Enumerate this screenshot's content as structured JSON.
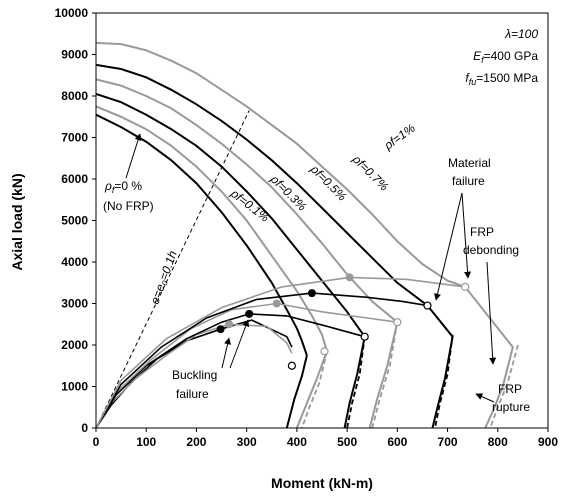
{
  "chart_data": {
    "type": "line",
    "xlabel": "Moment (kN-m)",
    "ylabel": "Axial load (kN)",
    "xlim": [
      0,
      900
    ],
    "ylim": [
      0,
      10000
    ],
    "xticks": [
      "0",
      "100",
      "200",
      "300",
      "400",
      "500",
      "600",
      "700",
      "800",
      "900"
    ],
    "yticks": [
      "0",
      "1000",
      "2000",
      "3000",
      "4000",
      "5000",
      "6000",
      "7000",
      "8000",
      "9000",
      "10000"
    ],
    "grid": false,
    "legend": "none",
    "params": {
      "lambda": "λ=100",
      "ef_label": "E",
      "ef_sub": "f",
      "ef_value": "=400 GPa",
      "ffu_label": "f",
      "ffu_sub": "fu",
      "ffu_value": "=1500 MPa"
    },
    "interaction_curves": [
      {
        "label": "ρf=0 %",
        "color": "#000000",
        "points": [
          [
            0,
            7550
          ],
          [
            50,
            7250
          ],
          [
            100,
            6900
          ],
          [
            150,
            6450
          ],
          [
            200,
            5900
          ],
          [
            250,
            5200
          ],
          [
            300,
            4400
          ],
          [
            350,
            3500
          ],
          [
            380,
            2850
          ],
          [
            400,
            2400
          ],
          [
            410,
            2100
          ],
          [
            420,
            1750
          ]
        ]
      },
      {
        "label": "ρf=0.1%",
        "color": "#999999",
        "points": [
          [
            0,
            7750
          ],
          [
            50,
            7500
          ],
          [
            100,
            7200
          ],
          [
            150,
            6800
          ],
          [
            200,
            6300
          ],
          [
            250,
            5700
          ],
          [
            300,
            5000
          ],
          [
            350,
            4150
          ],
          [
            400,
            3300
          ],
          [
            430,
            2700
          ],
          [
            450,
            2250
          ],
          [
            460,
            1850
          ]
        ]
      },
      {
        "label": "ρf=0.3%",
        "color": "#000000",
        "points": [
          [
            0,
            8050
          ],
          [
            50,
            7850
          ],
          [
            100,
            7550
          ],
          [
            150,
            7200
          ],
          [
            200,
            6800
          ],
          [
            250,
            6300
          ],
          [
            300,
            5700
          ],
          [
            350,
            5050
          ],
          [
            400,
            4300
          ],
          [
            450,
            3550
          ],
          [
            500,
            2800
          ],
          [
            535,
            2200
          ]
        ]
      },
      {
        "label": "ρf=0.5%",
        "color": "#999999",
        "points": [
          [
            0,
            8400
          ],
          [
            50,
            8250
          ],
          [
            100,
            8000
          ],
          [
            150,
            7700
          ],
          [
            200,
            7300
          ],
          [
            250,
            6850
          ],
          [
            300,
            6350
          ],
          [
            350,
            5800
          ],
          [
            400,
            5150
          ],
          [
            450,
            4450
          ],
          [
            500,
            3700
          ],
          [
            550,
            3050
          ],
          [
            600,
            2550
          ]
        ]
      },
      {
        "label": "ρf=0.7%",
        "color": "#000000",
        "points": [
          [
            0,
            8750
          ],
          [
            50,
            8650
          ],
          [
            100,
            8450
          ],
          [
            150,
            8150
          ],
          [
            200,
            7800
          ],
          [
            250,
            7400
          ],
          [
            300,
            6950
          ],
          [
            350,
            6450
          ],
          [
            400,
            5900
          ],
          [
            450,
            5300
          ],
          [
            500,
            4700
          ],
          [
            550,
            4100
          ],
          [
            600,
            3500
          ],
          [
            660,
            2950
          ]
        ]
      },
      {
        "label": "ρf=1%",
        "color": "#999999",
        "points": [
          [
            0,
            9280
          ],
          [
            50,
            9250
          ],
          [
            100,
            9100
          ],
          [
            150,
            8850
          ],
          [
            200,
            8550
          ],
          [
            250,
            8150
          ],
          [
            300,
            7750
          ],
          [
            350,
            7300
          ],
          [
            400,
            6850
          ],
          [
            450,
            6300
          ],
          [
            500,
            5750
          ],
          [
            550,
            5150
          ],
          [
            600,
            4500
          ],
          [
            650,
            3950
          ],
          [
            700,
            3550
          ],
          [
            735,
            3400
          ]
        ]
      }
    ],
    "lower_branches": [
      {
        "color": "#000000",
        "dashed": false,
        "points": [
          [
            420,
            1750
          ],
          [
            410,
            1250
          ],
          [
            395,
            700
          ],
          [
            380,
            0
          ]
        ]
      },
      {
        "color": "#999999",
        "dashed": false,
        "points": [
          [
            460,
            1850
          ],
          [
            440,
            1200
          ],
          [
            420,
            600
          ],
          [
            400,
            0
          ]
        ]
      },
      {
        "color": "#000000",
        "dashed": false,
        "points": [
          [
            535,
            2200
          ],
          [
            520,
            1300
          ],
          [
            505,
            600
          ],
          [
            495,
            0
          ]
        ]
      },
      {
        "color": "#999999",
        "dashed": false,
        "points": [
          [
            600,
            2550
          ],
          [
            580,
            1500
          ],
          [
            560,
            700
          ],
          [
            545,
            0
          ]
        ]
      },
      {
        "color": "#000000",
        "dashed": false,
        "points": [
          [
            660,
            2950
          ],
          [
            710,
            2200
          ],
          [
            695,
            1200
          ],
          [
            680,
            500
          ],
          [
            670,
            0
          ]
        ]
      },
      {
        "color": "#999999",
        "dashed": false,
        "points": [
          [
            735,
            3400
          ],
          [
            830,
            1950
          ],
          [
            810,
            1000
          ],
          [
            790,
            400
          ],
          [
            775,
            0
          ]
        ]
      }
    ],
    "rupture_branches": [
      {
        "color": "#999999",
        "points": [
          [
            460,
            1850
          ],
          [
            445,
            1100
          ],
          [
            425,
            500
          ],
          [
            410,
            0
          ]
        ]
      },
      {
        "color": "#000000",
        "points": [
          [
            535,
            2200
          ],
          [
            525,
            1300
          ],
          [
            510,
            600
          ],
          [
            500,
            0
          ]
        ]
      },
      {
        "color": "#999999",
        "points": [
          [
            600,
            2550
          ],
          [
            585,
            1500
          ],
          [
            565,
            700
          ],
          [
            550,
            0
          ]
        ]
      },
      {
        "color": "#000000",
        "points": [
          [
            710,
            2250
          ],
          [
            700,
            1300
          ],
          [
            685,
            600
          ],
          [
            675,
            0
          ]
        ]
      },
      {
        "color": "#999999",
        "points": [
          [
            840,
            2000
          ],
          [
            820,
            1100
          ],
          [
            800,
            500
          ],
          [
            785,
            0
          ]
        ]
      }
    ],
    "slenderness_curves": [
      {
        "color": "#000000",
        "points": [
          [
            0,
            0
          ],
          [
            30,
            550
          ],
          [
            70,
            1100
          ],
          [
            120,
            1650
          ],
          [
            180,
            2100
          ],
          [
            248,
            2380
          ],
          [
            310,
            2600
          ],
          [
            380,
            2200
          ],
          [
            390,
            1950
          ]
        ]
      },
      {
        "color": "#999999",
        "points": [
          [
            0,
            0
          ],
          [
            30,
            600
          ],
          [
            80,
            1200
          ],
          [
            140,
            1750
          ],
          [
            200,
            2250
          ],
          [
            265,
            2500
          ],
          [
            340,
            2450
          ],
          [
            380,
            2050
          ],
          [
            390,
            1800
          ]
        ]
      },
      {
        "color": "#000000",
        "points": [
          [
            0,
            0
          ],
          [
            40,
            800
          ],
          [
            100,
            1500
          ],
          [
            180,
            2150
          ],
          [
            250,
            2550
          ],
          [
            305,
            2750
          ],
          [
            380,
            2700
          ],
          [
            460,
            2450
          ],
          [
            535,
            2200
          ]
        ]
      },
      {
        "color": "#999999",
        "points": [
          [
            0,
            0
          ],
          [
            40,
            850
          ],
          [
            110,
            1650
          ],
          [
            190,
            2400
          ],
          [
            270,
            2850
          ],
          [
            360,
            3000
          ],
          [
            450,
            2800
          ],
          [
            540,
            2650
          ],
          [
            600,
            2550
          ]
        ]
      },
      {
        "color": "#000000",
        "points": [
          [
            0,
            0
          ],
          [
            50,
            1050
          ],
          [
            130,
            1950
          ],
          [
            220,
            2650
          ],
          [
            320,
            3100
          ],
          [
            430,
            3250
          ],
          [
            540,
            3150
          ],
          [
            610,
            3050
          ],
          [
            660,
            2950
          ]
        ]
      },
      {
        "color": "#999999",
        "points": [
          [
            0,
            0
          ],
          [
            50,
            1150
          ],
          [
            140,
            2150
          ],
          [
            250,
            2900
          ],
          [
            370,
            3400
          ],
          [
            505,
            3630
          ],
          [
            620,
            3580
          ],
          [
            735,
            3400
          ]
        ]
      }
    ],
    "buckling_points": [
      {
        "x": 248,
        "y": 2380,
        "color": "#000000",
        "hollow": false
      },
      {
        "x": 265,
        "y": 2500,
        "color": "#999999",
        "hollow": false
      },
      {
        "x": 305,
        "y": 2750,
        "color": "#000000",
        "hollow": false
      },
      {
        "x": 360,
        "y": 3000,
        "color": "#999999",
        "hollow": false
      },
      {
        "x": 430,
        "y": 3250,
        "color": "#000000",
        "hollow": false
      },
      {
        "x": 505,
        "y": 3630,
        "color": "#999999",
        "hollow": false
      }
    ],
    "failure_points": [
      {
        "x": 390,
        "y": 1500,
        "color": "#000000",
        "hollow": true
      },
      {
        "x": 455,
        "y": 1850,
        "color": "#999999",
        "hollow": true
      },
      {
        "x": 535,
        "y": 2200,
        "color": "#000000",
        "hollow": true
      },
      {
        "x": 600,
        "y": 2550,
        "color": "#999999",
        "hollow": true
      },
      {
        "x": 660,
        "y": 2950,
        "color": "#000000",
        "hollow": true
      },
      {
        "x": 735,
        "y": 3400,
        "color": "#999999",
        "hollow": true
      }
    ],
    "eccentricity_line": {
      "points": [
        [
          0,
          0
        ],
        [
          305,
          7650
        ]
      ],
      "label": "e=e₀=0.1h"
    },
    "labels": {
      "rho0_a": "ρ",
      "rho0_b": "f",
      "rho0_c": "=0 %",
      "rho0_d": "(No FRP)",
      "rho01": "ρf=0.1%",
      "rho03": "ρf=0.3%",
      "rho05": "ρf=0.5%",
      "rho07": "ρf=0.7%",
      "rho1": "ρf=1%",
      "material_failure_1": "Material",
      "material_failure_2": "failure",
      "frp_debonding_1": "FRP",
      "frp_debonding_2": "debonding",
      "buckling_1": "Buckling",
      "buckling_2": "failure",
      "frp_rupture_1": "FRP",
      "frp_rupture_2": "rupture"
    }
  }
}
